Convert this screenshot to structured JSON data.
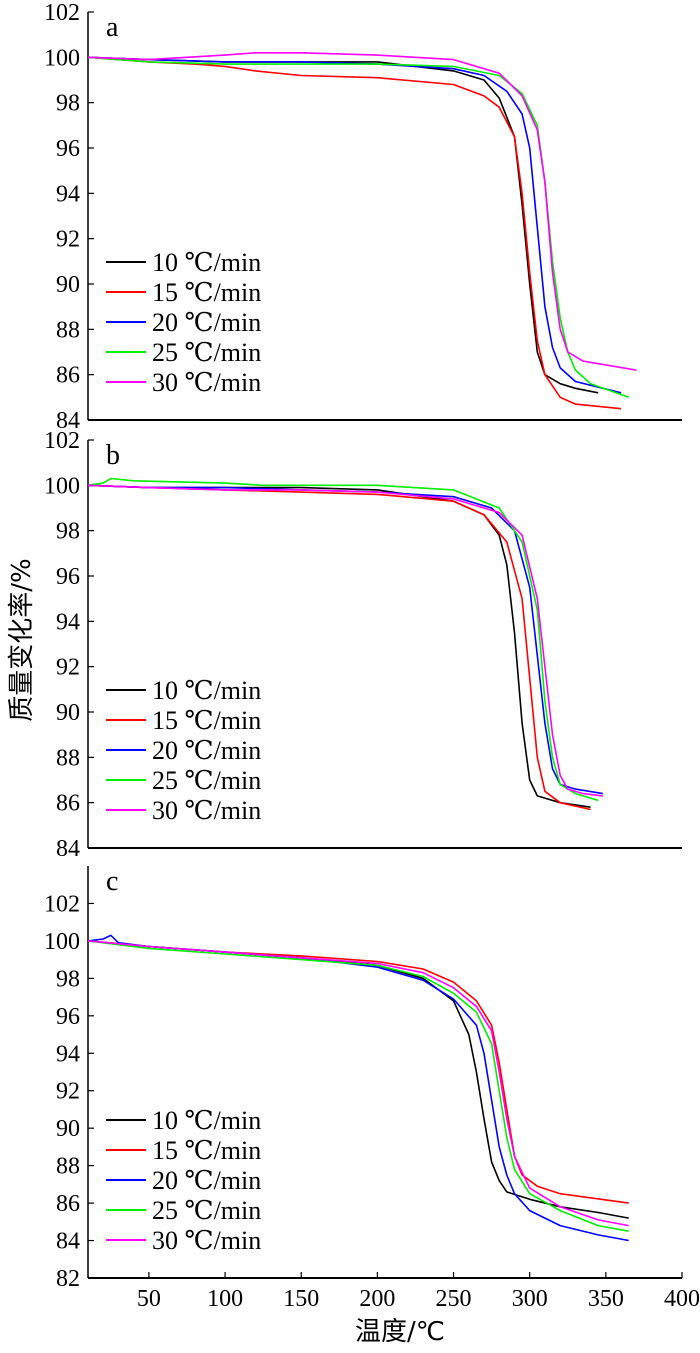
{
  "figure": {
    "xlabel": "温度/℃",
    "ylabel": "质量变化率/%",
    "x_ticks": [
      50,
      100,
      150,
      200,
      250,
      300,
      350,
      400
    ]
  },
  "chart_data": [
    {
      "type": "line",
      "panel_label": "a",
      "xlim": [
        10,
        400
      ],
      "ylim": [
        84,
        102
      ],
      "y_ticks": [
        84,
        86,
        88,
        90,
        92,
        94,
        96,
        98,
        100,
        102
      ],
      "grid": false,
      "legend_position": "left-lower",
      "series": [
        {
          "name": "10 ℃/min",
          "color": "#000000",
          "x": [
            10,
            50,
            100,
            150,
            200,
            250,
            270,
            280,
            290,
            295,
            300,
            305,
            310,
            320,
            330,
            345
          ],
          "y": [
            100,
            99.9,
            99.8,
            99.8,
            99.8,
            99.4,
            99.0,
            98.2,
            96.5,
            93.5,
            90.0,
            87.0,
            86.0,
            85.6,
            85.4,
            85.2
          ]
        },
        {
          "name": "15 ℃/min",
          "color": "#ff0000",
          "x": [
            10,
            50,
            80,
            100,
            120,
            150,
            200,
            250,
            270,
            280,
            290,
            295,
            300,
            305,
            310,
            320,
            330,
            360
          ],
          "y": [
            100,
            99.8,
            99.7,
            99.6,
            99.4,
            99.2,
            99.1,
            98.8,
            98.3,
            97.8,
            96.5,
            94.0,
            90.5,
            87.5,
            86.0,
            85.0,
            84.7,
            84.5
          ]
        },
        {
          "name": "20 ℃/min",
          "color": "#0000ff",
          "x": [
            10,
            50,
            100,
            150,
            200,
            250,
            270,
            285,
            295,
            300,
            305,
            310,
            315,
            320,
            330,
            360
          ],
          "y": [
            100,
            99.9,
            99.8,
            99.8,
            99.7,
            99.5,
            99.2,
            98.5,
            97.5,
            96.0,
            92.5,
            89.0,
            87.2,
            86.3,
            85.7,
            85.2
          ]
        },
        {
          "name": "25 ℃/min",
          "color": "#00ee00",
          "x": [
            10,
            50,
            100,
            150,
            200,
            250,
            280,
            295,
            305,
            310,
            315,
            320,
            325,
            330,
            340,
            365
          ],
          "y": [
            100,
            99.8,
            99.7,
            99.7,
            99.7,
            99.6,
            99.2,
            98.4,
            97.0,
            94.5,
            91.0,
            88.5,
            87.0,
            86.2,
            85.6,
            85.0
          ]
        },
        {
          "name": "30 ℃/min",
          "color": "#ff00ff",
          "x": [
            10,
            50,
            100,
            120,
            150,
            200,
            250,
            280,
            295,
            305,
            310,
            315,
            320,
            325,
            335,
            370
          ],
          "y": [
            100,
            99.9,
            100.1,
            100.2,
            100.2,
            100.1,
            99.9,
            99.3,
            98.3,
            96.8,
            94.5,
            90.5,
            88.0,
            87.0,
            86.6,
            86.2
          ]
        }
      ]
    },
    {
      "type": "line",
      "panel_label": "b",
      "xlim": [
        10,
        400
      ],
      "ylim": [
        84,
        102
      ],
      "y_ticks": [
        84,
        86,
        88,
        90,
        92,
        94,
        96,
        98,
        100,
        102
      ],
      "grid": false,
      "legend_position": "left-lower",
      "series": [
        {
          "name": "10 ℃/min",
          "color": "#000000",
          "x": [
            10,
            50,
            100,
            150,
            200,
            250,
            270,
            280,
            285,
            290,
            295,
            300,
            305,
            320,
            340
          ],
          "y": [
            100,
            99.9,
            99.9,
            99.9,
            99.8,
            99.3,
            98.7,
            97.8,
            96.5,
            93.5,
            89.5,
            87.0,
            86.3,
            86.0,
            85.8
          ]
        },
        {
          "name": "15 ℃/min",
          "color": "#ff0000",
          "x": [
            10,
            50,
            100,
            150,
            200,
            250,
            270,
            285,
            295,
            300,
            305,
            310,
            320,
            340
          ],
          "y": [
            100,
            99.9,
            99.8,
            99.7,
            99.6,
            99.3,
            98.7,
            97.5,
            95.0,
            91.5,
            88.0,
            86.5,
            86.0,
            85.7
          ]
        },
        {
          "name": "20 ℃/min",
          "color": "#0000ff",
          "x": [
            10,
            50,
            100,
            150,
            200,
            250,
            275,
            290,
            300,
            305,
            310,
            315,
            320,
            330,
            348
          ],
          "y": [
            100,
            99.9,
            99.9,
            99.8,
            99.7,
            99.5,
            99.0,
            98.0,
            95.5,
            92.5,
            89.5,
            87.5,
            86.8,
            86.6,
            86.4
          ]
        },
        {
          "name": "25 ℃/min",
          "color": "#00ee00",
          "x": [
            10,
            20,
            25,
            40,
            100,
            125,
            150,
            200,
            250,
            280,
            295,
            305,
            310,
            315,
            320,
            330,
            345
          ],
          "y": [
            100,
            100.1,
            100.3,
            100.2,
            100.1,
            100.0,
            100.0,
            100.0,
            99.8,
            99.0,
            97.5,
            94.5,
            90.5,
            88.0,
            86.8,
            86.4,
            86.1
          ]
        },
        {
          "name": "30 ℃/min",
          "color": "#ff00ff",
          "x": [
            10,
            50,
            100,
            150,
            200,
            250,
            280,
            295,
            305,
            310,
            315,
            320,
            325,
            335,
            348
          ],
          "y": [
            100,
            99.9,
            99.8,
            99.8,
            99.7,
            99.4,
            98.8,
            97.8,
            95.0,
            92.0,
            89.0,
            87.2,
            86.6,
            86.4,
            86.3
          ]
        }
      ]
    },
    {
      "type": "line",
      "panel_label": "c",
      "xlim": [
        10,
        400
      ],
      "ylim": [
        82,
        104
      ],
      "y_ticks": [
        82,
        84,
        86,
        88,
        90,
        92,
        94,
        96,
        98,
        100,
        102
      ],
      "grid": false,
      "legend_position": "left-lower",
      "series": [
        {
          "name": "10 ℃/min",
          "color": "#000000",
          "x": [
            10,
            50,
            100,
            150,
            200,
            230,
            250,
            260,
            265,
            270,
            275,
            280,
            285,
            300,
            320,
            345,
            365
          ],
          "y": [
            100,
            99.7,
            99.4,
            99.1,
            98.7,
            98.0,
            96.8,
            95.0,
            93.0,
            90.5,
            88.2,
            87.2,
            86.6,
            86.2,
            85.8,
            85.5,
            85.2
          ]
        },
        {
          "name": "15 ℃/min",
          "color": "#ff0000",
          "x": [
            10,
            50,
            100,
            150,
            200,
            230,
            250,
            265,
            275,
            280,
            285,
            290,
            295,
            305,
            320,
            365
          ],
          "y": [
            100,
            99.7,
            99.4,
            99.2,
            98.9,
            98.5,
            97.8,
            96.8,
            95.5,
            93.5,
            91.0,
            88.5,
            87.5,
            86.9,
            86.5,
            86.0
          ]
        },
        {
          "name": "20 ℃/min",
          "color": "#0000ff",
          "x": [
            10,
            20,
            25,
            30,
            50,
            100,
            150,
            200,
            230,
            250,
            265,
            270,
            275,
            280,
            285,
            290,
            300,
            320,
            345,
            365
          ],
          "y": [
            100,
            100.1,
            100.3,
            99.9,
            99.7,
            99.4,
            99.1,
            98.6,
            97.9,
            96.9,
            95.5,
            94.0,
            91.5,
            89.0,
            87.5,
            86.5,
            85.6,
            84.8,
            84.3,
            84.0
          ]
        },
        {
          "name": "25 ℃/min",
          "color": "#00ee00",
          "x": [
            10,
            50,
            100,
            150,
            200,
            230,
            250,
            265,
            275,
            280,
            285,
            290,
            300,
            320,
            345,
            365
          ],
          "y": [
            100,
            99.6,
            99.3,
            99.0,
            98.7,
            98.1,
            97.2,
            96.2,
            94.5,
            92.0,
            89.5,
            87.8,
            86.5,
            85.6,
            84.8,
            84.5
          ]
        },
        {
          "name": "30 ℃/min",
          "color": "#ff00ff",
          "x": [
            10,
            50,
            100,
            150,
            200,
            230,
            250,
            265,
            275,
            280,
            285,
            290,
            300,
            320,
            345,
            365
          ],
          "y": [
            100,
            99.7,
            99.4,
            99.1,
            98.8,
            98.3,
            97.5,
            96.5,
            95.2,
            93.0,
            90.5,
            88.5,
            86.8,
            85.8,
            85.1,
            84.8
          ]
        }
      ]
    }
  ]
}
